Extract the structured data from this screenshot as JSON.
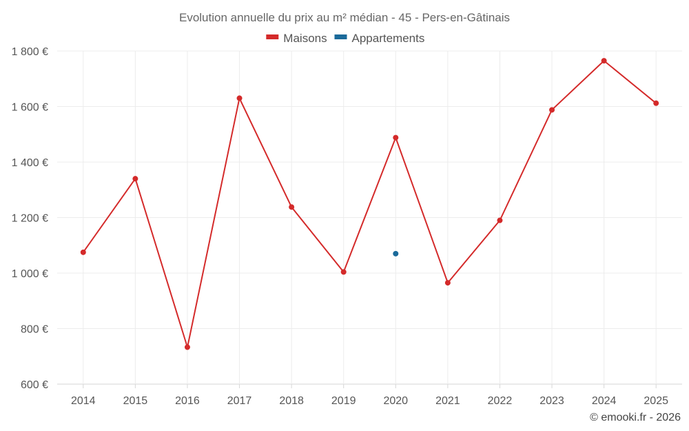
{
  "chart_data": {
    "type": "line",
    "title": "Evolution annuelle du prix au m² médian - 45 - Pers-en-Gâtinais",
    "categories": [
      "2014",
      "2015",
      "2016",
      "2017",
      "2018",
      "2019",
      "2020",
      "2021",
      "2022",
      "2023",
      "2024",
      "2025"
    ],
    "series": [
      {
        "name": "Maisons",
        "color": "#d42a2a",
        "values": [
          1075,
          1340,
          733,
          1630,
          1238,
          1004,
          1488,
          965,
          1190,
          1588,
          1765,
          1612
        ]
      },
      {
        "name": "Appartements",
        "color": "#1a6a9a",
        "values": [
          null,
          null,
          null,
          null,
          null,
          null,
          1070,
          null,
          null,
          null,
          null,
          null
        ]
      }
    ],
    "ylim": [
      600,
      1800
    ],
    "yticks": [
      600,
      800,
      1000,
      1200,
      1400,
      1600,
      1800
    ],
    "ytick_labels": [
      "600 €",
      "800 €",
      "1 000 €",
      "1 200 €",
      "1 400 €",
      "1 600 €",
      "1 800 €"
    ],
    "xlabel": "",
    "ylabel": "",
    "grid": true,
    "legend_position": "top-center"
  },
  "credit": "© emooki.fr - 2026"
}
